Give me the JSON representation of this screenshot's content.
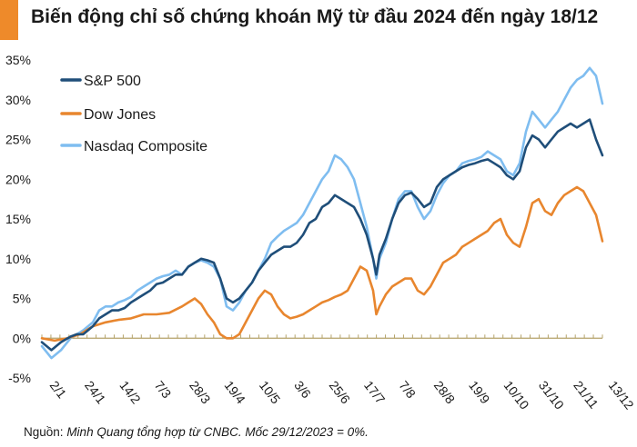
{
  "header": {
    "title": "Biến động chỉ số chứng khoán Mỹ từ đầu 2024 đến ngày 18/12"
  },
  "footer": {
    "source_label": "Nguồn:",
    "source_text": "Minh Quang tổng hợp từ CNBC. Mốc 29/12/2023 = 0%."
  },
  "colors": {
    "accent": "#ee8a2a",
    "sp500": "#1f4e79",
    "dow": "#e8862e",
    "nasdaq": "#7fbdf0",
    "zero_line": "#b5a36a"
  },
  "chart_data": {
    "type": "line",
    "title": "Biến động chỉ số chứng khoán Mỹ từ đầu 2024 đến ngày 18/12",
    "xlabel": "",
    "ylabel": "",
    "ylim": [
      -5,
      35
    ],
    "y_ticks": [
      -5,
      0,
      5,
      10,
      15,
      20,
      25,
      30,
      35
    ],
    "y_tick_labels": [
      "-5%",
      "0%",
      "5%",
      "10%",
      "15%",
      "20%",
      "25%",
      "30%",
      "35%"
    ],
    "x_tick_labels": [
      "2/1",
      "24/1",
      "14/2",
      "7/3",
      "28/3",
      "19/4",
      "10/5",
      "3/6",
      "25/6",
      "17/7",
      "7/8",
      "28/8",
      "19/9",
      "10/10",
      "31/10",
      "21/11",
      "13/12"
    ],
    "legend": [
      "S&P 500",
      "Dow Jones",
      "Nasdaq Composite"
    ],
    "legend_position": "top-left",
    "series": [
      {
        "name": "S&P 500",
        "color": "#1f4e79",
        "points": [
          [
            0,
            -0.5
          ],
          [
            3,
            -1.5
          ],
          [
            6,
            -0.5
          ],
          [
            9,
            0.2
          ],
          [
            11,
            0.5
          ],
          [
            13,
            0.5
          ],
          [
            16,
            1.5
          ],
          [
            18,
            2.5
          ],
          [
            20,
            3
          ],
          [
            22,
            3.5
          ],
          [
            24,
            3.5
          ],
          [
            26,
            3.8
          ],
          [
            28,
            4.5
          ],
          [
            30,
            5
          ],
          [
            32,
            5.5
          ],
          [
            34,
            6
          ],
          [
            36,
            6.8
          ],
          [
            38,
            7
          ],
          [
            40,
            7.5
          ],
          [
            42,
            8
          ],
          [
            44,
            8
          ],
          [
            46,
            9
          ],
          [
            48,
            9.5
          ],
          [
            50,
            10
          ],
          [
            52,
            9.8
          ],
          [
            54,
            9.5
          ],
          [
            56,
            7.5
          ],
          [
            58,
            5
          ],
          [
            60,
            4.5
          ],
          [
            62,
            5
          ],
          [
            64,
            6
          ],
          [
            66,
            7
          ],
          [
            68,
            8.5
          ],
          [
            70,
            9.5
          ],
          [
            72,
            10.5
          ],
          [
            74,
            11
          ],
          [
            76,
            11.5
          ],
          [
            78,
            11.5
          ],
          [
            80,
            12
          ],
          [
            82,
            13
          ],
          [
            84,
            14.5
          ],
          [
            86,
            15
          ],
          [
            88,
            16.5
          ],
          [
            90,
            17
          ],
          [
            92,
            18
          ],
          [
            94,
            17.5
          ],
          [
            96,
            17
          ],
          [
            98,
            16.5
          ],
          [
            100,
            15
          ],
          [
            102,
            13
          ],
          [
            104,
            10
          ],
          [
            105,
            8
          ],
          [
            106,
            10.5
          ],
          [
            108,
            12.5
          ],
          [
            110,
            15
          ],
          [
            112,
            17
          ],
          [
            114,
            18
          ],
          [
            116,
            18.3
          ],
          [
            118,
            17.5
          ],
          [
            120,
            16.5
          ],
          [
            122,
            17
          ],
          [
            124,
            19
          ],
          [
            126,
            20
          ],
          [
            128,
            20.5
          ],
          [
            130,
            21
          ],
          [
            132,
            21.5
          ],
          [
            134,
            21.8
          ],
          [
            136,
            22
          ],
          [
            138,
            22.3
          ],
          [
            140,
            22.5
          ],
          [
            142,
            22
          ],
          [
            144,
            21.5
          ],
          [
            146,
            20.5
          ],
          [
            148,
            20
          ],
          [
            150,
            21
          ],
          [
            152,
            24
          ],
          [
            154,
            25.5
          ],
          [
            156,
            25
          ],
          [
            158,
            24
          ],
          [
            160,
            25
          ],
          [
            162,
            26
          ],
          [
            164,
            26.5
          ],
          [
            166,
            27
          ],
          [
            168,
            26.5
          ],
          [
            170,
            27
          ],
          [
            172,
            27.5
          ],
          [
            174,
            25
          ],
          [
            176,
            23
          ]
        ]
      },
      {
        "name": "Dow Jones",
        "color": "#e8862e",
        "points": [
          [
            0,
            0
          ],
          [
            4,
            -0.3
          ],
          [
            8,
            0
          ],
          [
            12,
            0.5
          ],
          [
            16,
            1.5
          ],
          [
            20,
            2
          ],
          [
            24,
            2.3
          ],
          [
            28,
            2.5
          ],
          [
            32,
            3
          ],
          [
            36,
            3
          ],
          [
            40,
            3.2
          ],
          [
            44,
            4
          ],
          [
            46,
            4.5
          ],
          [
            48,
            5
          ],
          [
            50,
            4.3
          ],
          [
            52,
            3
          ],
          [
            54,
            2
          ],
          [
            56,
            0.5
          ],
          [
            58,
            0
          ],
          [
            60,
            0
          ],
          [
            62,
            0.5
          ],
          [
            64,
            2
          ],
          [
            66,
            3.5
          ],
          [
            68,
            5
          ],
          [
            70,
            6
          ],
          [
            72,
            5.5
          ],
          [
            74,
            4
          ],
          [
            76,
            3
          ],
          [
            78,
            2.5
          ],
          [
            80,
            2.7
          ],
          [
            82,
            3
          ],
          [
            84,
            3.5
          ],
          [
            86,
            4
          ],
          [
            88,
            4.5
          ],
          [
            90,
            4.8
          ],
          [
            92,
            5.2
          ],
          [
            94,
            5.5
          ],
          [
            96,
            6
          ],
          [
            98,
            7.5
          ],
          [
            100,
            9
          ],
          [
            102,
            8.5
          ],
          [
            104,
            6
          ],
          [
            105,
            3
          ],
          [
            106,
            4
          ],
          [
            108,
            5.5
          ],
          [
            110,
            6.5
          ],
          [
            112,
            7
          ],
          [
            114,
            7.5
          ],
          [
            116,
            7.5
          ],
          [
            118,
            6
          ],
          [
            120,
            5.5
          ],
          [
            122,
            6.5
          ],
          [
            124,
            8
          ],
          [
            126,
            9.5
          ],
          [
            128,
            10
          ],
          [
            130,
            10.5
          ],
          [
            132,
            11.5
          ],
          [
            134,
            12
          ],
          [
            136,
            12.5
          ],
          [
            138,
            13
          ],
          [
            140,
            13.5
          ],
          [
            142,
            14.5
          ],
          [
            144,
            15
          ],
          [
            146,
            13
          ],
          [
            148,
            12
          ],
          [
            150,
            11.5
          ],
          [
            152,
            14
          ],
          [
            154,
            17
          ],
          [
            156,
            17.5
          ],
          [
            158,
            16
          ],
          [
            160,
            15.5
          ],
          [
            162,
            17
          ],
          [
            164,
            18
          ],
          [
            166,
            18.5
          ],
          [
            168,
            19
          ],
          [
            170,
            18.5
          ],
          [
            172,
            17
          ],
          [
            174,
            15.5
          ],
          [
            176,
            12.2
          ]
        ]
      },
      {
        "name": "Nasdaq Composite",
        "color": "#7fbdf0",
        "points": [
          [
            0,
            -1
          ],
          [
            3,
            -2.5
          ],
          [
            6,
            -1.5
          ],
          [
            9,
            0
          ],
          [
            11,
            0.5
          ],
          [
            13,
            1
          ],
          [
            16,
            2
          ],
          [
            18,
            3.5
          ],
          [
            20,
            4
          ],
          [
            22,
            4
          ],
          [
            24,
            4.5
          ],
          [
            26,
            4.8
          ],
          [
            28,
            5.2
          ],
          [
            30,
            6
          ],
          [
            32,
            6.5
          ],
          [
            34,
            7
          ],
          [
            36,
            7.5
          ],
          [
            38,
            7.8
          ],
          [
            40,
            8
          ],
          [
            42,
            8.5
          ],
          [
            44,
            8
          ],
          [
            46,
            9
          ],
          [
            48,
            9.5
          ],
          [
            50,
            9.8
          ],
          [
            52,
            9.5
          ],
          [
            54,
            9
          ],
          [
            56,
            7.5
          ],
          [
            58,
            4
          ],
          [
            60,
            3.5
          ],
          [
            62,
            4.5
          ],
          [
            64,
            6
          ],
          [
            66,
            7
          ],
          [
            68,
            8.5
          ],
          [
            70,
            10
          ],
          [
            72,
            12
          ],
          [
            74,
            12.8
          ],
          [
            76,
            13.5
          ],
          [
            78,
            14
          ],
          [
            80,
            14.5
          ],
          [
            82,
            15.5
          ],
          [
            84,
            17
          ],
          [
            86,
            18.5
          ],
          [
            88,
            20
          ],
          [
            90,
            21
          ],
          [
            92,
            23
          ],
          [
            94,
            22.5
          ],
          [
            96,
            21.5
          ],
          [
            98,
            20
          ],
          [
            100,
            17
          ],
          [
            102,
            14
          ],
          [
            104,
            10
          ],
          [
            105,
            7.5
          ],
          [
            106,
            10
          ],
          [
            108,
            12
          ],
          [
            110,
            15
          ],
          [
            112,
            17.5
          ],
          [
            114,
            18.5
          ],
          [
            116,
            18.5
          ],
          [
            118,
            16.5
          ],
          [
            120,
            15
          ],
          [
            122,
            16
          ],
          [
            124,
            18
          ],
          [
            126,
            19.5
          ],
          [
            128,
            20.5
          ],
          [
            130,
            21
          ],
          [
            132,
            22
          ],
          [
            134,
            22.3
          ],
          [
            136,
            22.5
          ],
          [
            138,
            22.8
          ],
          [
            140,
            23.5
          ],
          [
            142,
            23
          ],
          [
            144,
            22.5
          ],
          [
            146,
            21
          ],
          [
            148,
            20.5
          ],
          [
            150,
            22
          ],
          [
            152,
            26
          ],
          [
            154,
            28.5
          ],
          [
            156,
            27.5
          ],
          [
            158,
            26.5
          ],
          [
            160,
            27.5
          ],
          [
            162,
            28.5
          ],
          [
            164,
            30
          ],
          [
            166,
            31.5
          ],
          [
            168,
            32.5
          ],
          [
            170,
            33
          ],
          [
            172,
            34
          ],
          [
            174,
            33
          ],
          [
            176,
            29.5
          ]
        ]
      }
    ]
  }
}
